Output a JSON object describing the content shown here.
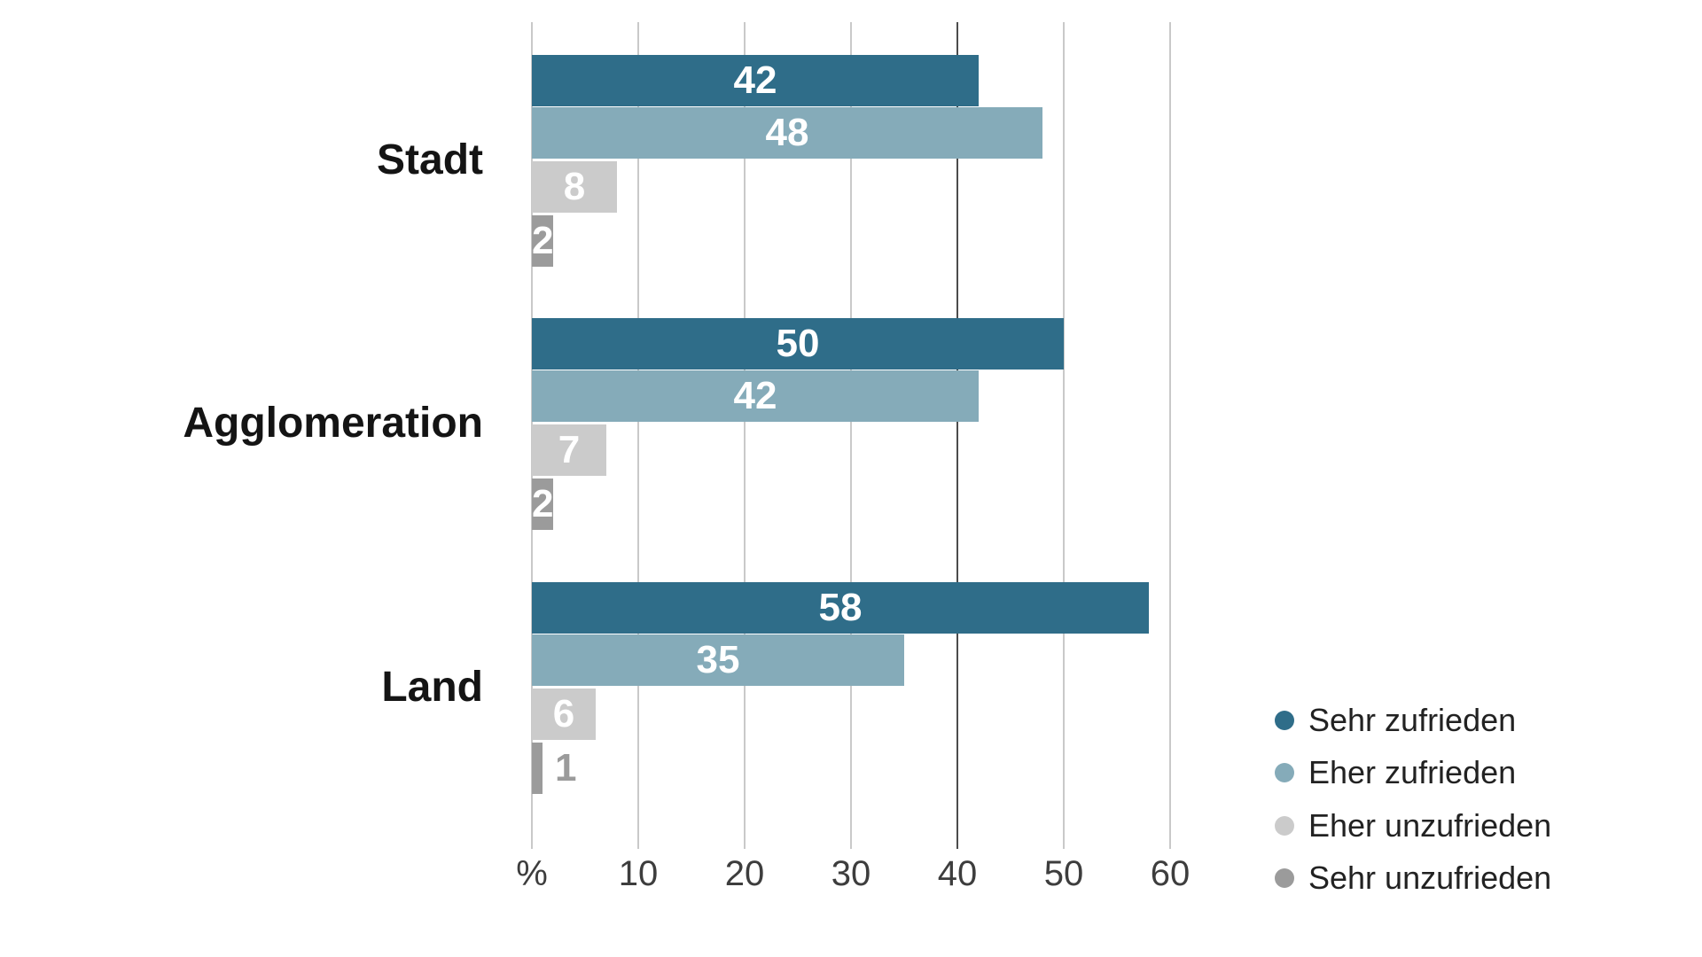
{
  "page": {
    "background": "#ffffff"
  },
  "chart_data": {
    "type": "bar",
    "orientation": "horizontal",
    "title": "",
    "categories": [
      "Stadt",
      "Agglomeration",
      "Land"
    ],
    "series": [
      {
        "name": "Sehr zufrieden",
        "color": "#2f6d89",
        "values": [
          42,
          50,
          58
        ]
      },
      {
        "name": "Eher zufrieden",
        "color": "#85abb9",
        "values": [
          48,
          42,
          35
        ]
      },
      {
        "name": "Eher unzufrieden",
        "color": "#cbcbcb",
        "values": [
          8,
          7,
          6
        ]
      },
      {
        "name": "Sehr unzufrieden",
        "color": "#9b9b9b",
        "values": [
          2,
          2,
          1
        ]
      }
    ],
    "x_axis": {
      "unit_label": "%",
      "ticks": [
        0,
        10,
        20,
        30,
        40,
        50,
        60
      ],
      "tick_labels": [
        "%",
        "10",
        "20",
        "30",
        "40",
        "50",
        "60"
      ],
      "emphasized_tick": 40,
      "xlim": [
        0,
        60
      ]
    },
    "grid": "vertical-only",
    "legend_position": "bottom-right",
    "value_label_style": "white bold inside bar; values too small for bar shown outside in gray"
  },
  "style": {
    "grid_color": "#c9c9c9",
    "grid_emphasis_color": "#4c4c4c",
    "category_text_color": "#141414",
    "tick_text_color": "#3d3d3d",
    "value_label_color": "#ffffff",
    "outside_value_label_color": "#9b9b9b",
    "legend_text_color": "#222222"
  }
}
